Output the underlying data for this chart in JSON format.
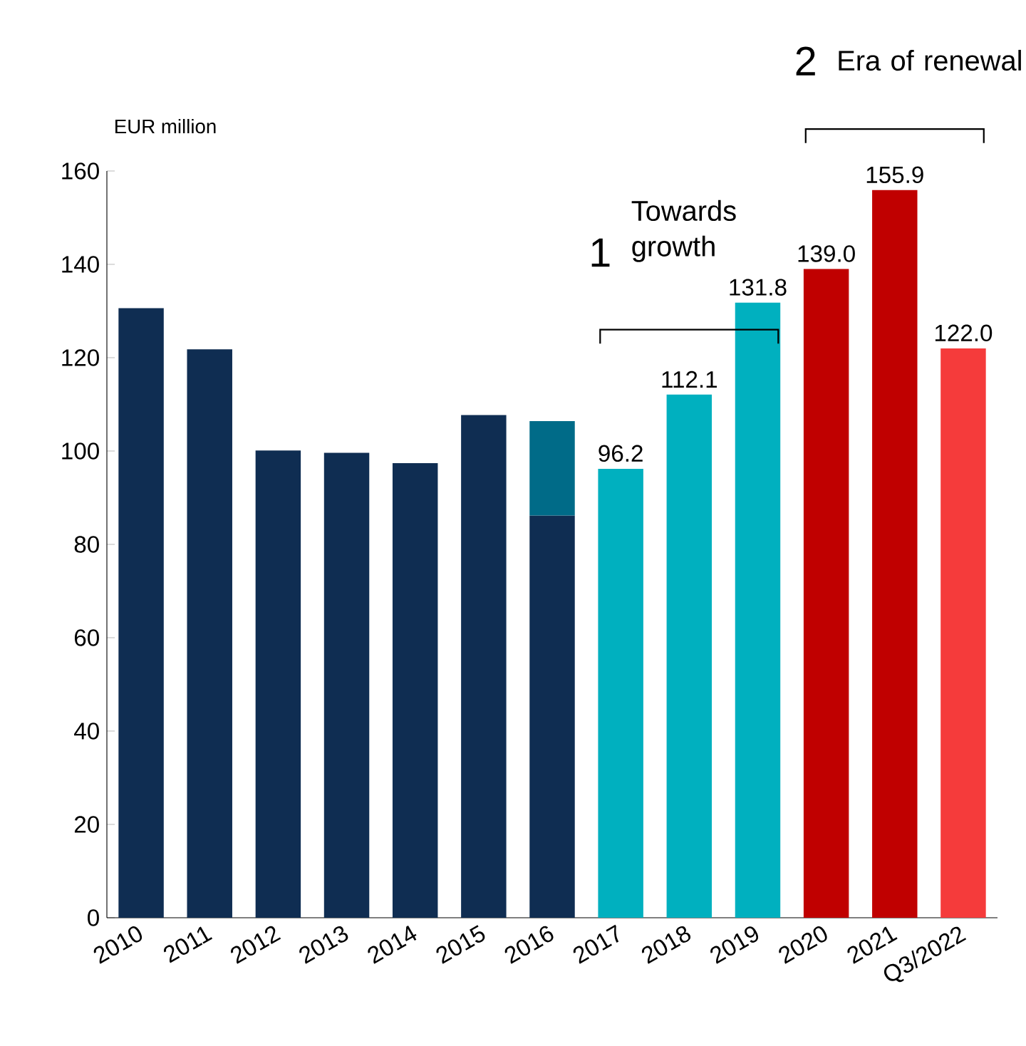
{
  "chart_data": {
    "type": "bar",
    "ylabel": "EUR million",
    "stacked": true,
    "categories": [
      "2010",
      "2011",
      "2012",
      "2013",
      "2014",
      "2015",
      "2016",
      "2017",
      "2018",
      "2019",
      "2020",
      "2021",
      "Q3/2022"
    ],
    "series": [
      {
        "values": [
          130.6,
          121.8,
          100.1,
          99.6,
          97.4,
          107.7,
          86.2,
          96.2,
          112.1,
          131.8,
          139.0,
          155.9,
          122.0
        ],
        "colors": [
          "#0f2d52",
          "#0f2d52",
          "#0f2d52",
          "#0f2d52",
          "#0f2d52",
          "#0f2d52",
          "#0f2d52",
          "#00b0bf",
          "#00b0bf",
          "#00b0bf",
          "#c00000",
          "#c00000",
          "#f53b3b"
        ],
        "value_labels": [
          null,
          null,
          null,
          null,
          null,
          null,
          null,
          "96.2",
          "112.1",
          "131.8",
          "139.0",
          "155.9",
          "122.0"
        ]
      },
      {
        "values": [
          null,
          null,
          null,
          null,
          null,
          null,
          20.2,
          null,
          null,
          null,
          null,
          null,
          null
        ],
        "color": "#006b88"
      }
    ],
    "ylim": [
      0,
      160
    ],
    "yticks": [
      0,
      20,
      40,
      60,
      80,
      100,
      120,
      140,
      160
    ],
    "grid": false,
    "annotations": [
      "1",
      "Towards growth",
      "2",
      "Era of renewal"
    ]
  }
}
